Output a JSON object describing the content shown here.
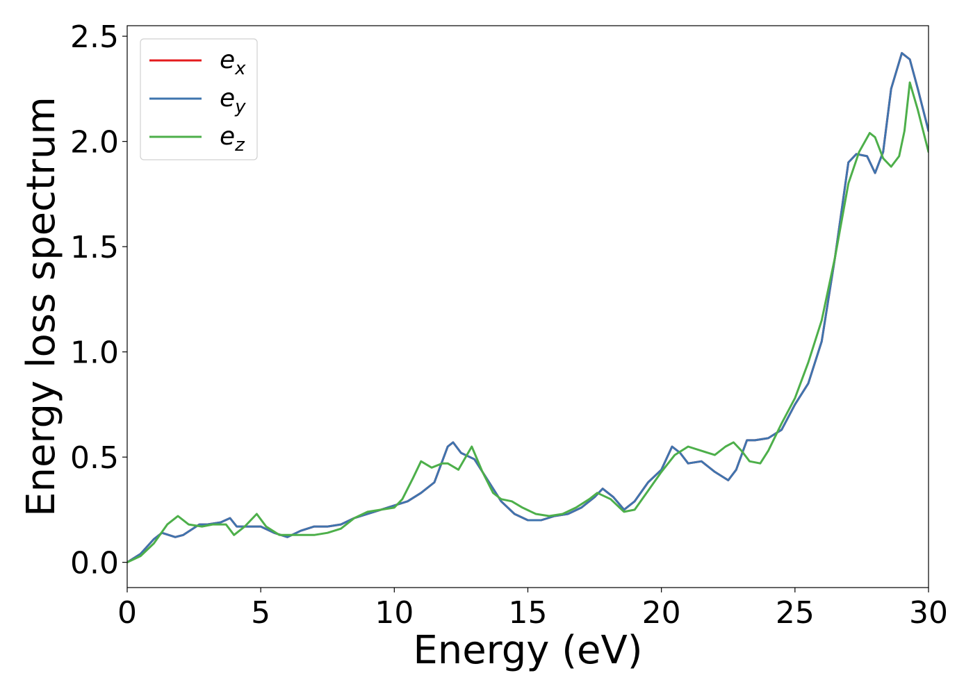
{
  "chart_data": {
    "type": "line",
    "title": "",
    "xlabel": "Energy (eV)",
    "ylabel": "Energy loss spectrum",
    "xlim": [
      0,
      30
    ],
    "ylim": [
      -0.12,
      2.55
    ],
    "xticks": [
      "0",
      "5",
      "10",
      "15",
      "20",
      "25",
      "30"
    ],
    "yticks": [
      "0.0",
      "0.5",
      "1.0",
      "1.5",
      "2.0",
      "2.5"
    ],
    "grid": false,
    "legend_position": "upper-left",
    "series": [
      {
        "name": "e_x",
        "label_base": "e",
        "label_sub": "x",
        "color": "#e41a1c",
        "x": [
          0,
          0.5,
          1.0,
          1.3,
          1.8,
          2.1,
          2.7,
          3.0,
          3.5,
          3.85,
          4.1,
          4.5,
          5.0,
          5.5,
          6.0,
          6.5,
          7.0,
          7.5,
          8.0,
          8.5,
          9.0,
          9.5,
          10.0,
          10.5,
          11.0,
          11.5,
          12.0,
          12.2,
          12.5,
          13.0,
          13.5,
          14.0,
          14.5,
          15.0,
          15.5,
          16.0,
          16.5,
          17.0,
          17.5,
          17.8,
          18.2,
          18.6,
          19.0,
          19.5,
          20.0,
          20.4,
          20.7,
          21.0,
          21.5,
          22.0,
          22.5,
          22.8,
          23.2,
          23.5,
          24.0,
          24.5,
          25.0,
          25.5,
          26.0,
          26.5,
          27.0,
          27.3,
          27.7,
          28.0,
          28.3,
          28.6,
          29.0,
          29.3,
          29.6,
          30.0
        ],
        "y": [
          0.0,
          0.04,
          0.11,
          0.14,
          0.12,
          0.13,
          0.18,
          0.18,
          0.19,
          0.21,
          0.17,
          0.17,
          0.17,
          0.14,
          0.12,
          0.15,
          0.17,
          0.17,
          0.18,
          0.21,
          0.23,
          0.25,
          0.27,
          0.29,
          0.33,
          0.38,
          0.55,
          0.57,
          0.52,
          0.49,
          0.39,
          0.29,
          0.23,
          0.2,
          0.2,
          0.22,
          0.23,
          0.26,
          0.31,
          0.35,
          0.31,
          0.25,
          0.29,
          0.38,
          0.44,
          0.55,
          0.52,
          0.47,
          0.48,
          0.43,
          0.39,
          0.44,
          0.58,
          0.58,
          0.59,
          0.63,
          0.75,
          0.85,
          1.05,
          1.45,
          1.9,
          1.94,
          1.93,
          1.85,
          1.95,
          2.25,
          2.42,
          2.39,
          2.25,
          2.05
        ]
      },
      {
        "name": "e_y",
        "label_base": "e",
        "label_sub": "y",
        "color": "#3f74ae",
        "x": [
          0,
          0.5,
          1.0,
          1.3,
          1.8,
          2.1,
          2.7,
          3.0,
          3.5,
          3.85,
          4.1,
          4.5,
          5.0,
          5.5,
          6.0,
          6.5,
          7.0,
          7.5,
          8.0,
          8.5,
          9.0,
          9.5,
          10.0,
          10.5,
          11.0,
          11.5,
          12.0,
          12.2,
          12.5,
          13.0,
          13.5,
          14.0,
          14.5,
          15.0,
          15.5,
          16.0,
          16.5,
          17.0,
          17.5,
          17.8,
          18.2,
          18.6,
          19.0,
          19.5,
          20.0,
          20.4,
          20.7,
          21.0,
          21.5,
          22.0,
          22.5,
          22.8,
          23.2,
          23.5,
          24.0,
          24.5,
          25.0,
          25.5,
          26.0,
          26.5,
          27.0,
          27.3,
          27.7,
          28.0,
          28.3,
          28.6,
          29.0,
          29.3,
          29.6,
          30.0
        ],
        "y": [
          0.0,
          0.04,
          0.11,
          0.14,
          0.12,
          0.13,
          0.18,
          0.18,
          0.19,
          0.21,
          0.17,
          0.17,
          0.17,
          0.14,
          0.12,
          0.15,
          0.17,
          0.17,
          0.18,
          0.21,
          0.23,
          0.25,
          0.27,
          0.29,
          0.33,
          0.38,
          0.55,
          0.57,
          0.52,
          0.49,
          0.39,
          0.29,
          0.23,
          0.2,
          0.2,
          0.22,
          0.23,
          0.26,
          0.31,
          0.35,
          0.31,
          0.25,
          0.29,
          0.38,
          0.44,
          0.55,
          0.52,
          0.47,
          0.48,
          0.43,
          0.39,
          0.44,
          0.58,
          0.58,
          0.59,
          0.63,
          0.75,
          0.85,
          1.05,
          1.45,
          1.9,
          1.94,
          1.93,
          1.85,
          1.95,
          2.25,
          2.42,
          2.39,
          2.25,
          2.05
        ]
      },
      {
        "name": "e_z",
        "label_base": "e",
        "label_sub": "z",
        "color": "#4daf4a",
        "x": [
          0,
          0.5,
          1.0,
          1.5,
          1.9,
          2.3,
          2.8,
          3.2,
          3.7,
          4.0,
          4.4,
          4.85,
          5.2,
          5.7,
          6.2,
          7.0,
          7.5,
          8.0,
          8.5,
          9.0,
          9.5,
          10.0,
          10.3,
          10.7,
          11.0,
          11.4,
          11.8,
          12.0,
          12.4,
          12.9,
          13.3,
          13.7,
          14.0,
          14.4,
          14.8,
          15.3,
          15.8,
          16.3,
          16.8,
          17.3,
          17.6,
          18.1,
          18.6,
          19.0,
          19.5,
          20.0,
          20.5,
          21.0,
          21.5,
          22.0,
          22.4,
          22.7,
          23.0,
          23.3,
          23.7,
          24.0,
          24.5,
          25.0,
          25.5,
          26.0,
          26.5,
          27.0,
          27.4,
          27.8,
          28.0,
          28.3,
          28.6,
          28.9,
          29.1,
          29.3,
          29.6,
          30.0
        ],
        "y": [
          0.0,
          0.03,
          0.09,
          0.18,
          0.22,
          0.18,
          0.17,
          0.18,
          0.18,
          0.13,
          0.17,
          0.23,
          0.17,
          0.13,
          0.13,
          0.13,
          0.14,
          0.16,
          0.21,
          0.24,
          0.25,
          0.26,
          0.3,
          0.4,
          0.48,
          0.45,
          0.47,
          0.47,
          0.44,
          0.55,
          0.43,
          0.33,
          0.3,
          0.29,
          0.26,
          0.23,
          0.22,
          0.23,
          0.26,
          0.3,
          0.33,
          0.3,
          0.24,
          0.25,
          0.34,
          0.43,
          0.51,
          0.55,
          0.53,
          0.51,
          0.55,
          0.57,
          0.53,
          0.48,
          0.47,
          0.53,
          0.66,
          0.78,
          0.95,
          1.15,
          1.45,
          1.8,
          1.95,
          2.04,
          2.02,
          1.92,
          1.88,
          1.93,
          2.05,
          2.28,
          2.15,
          1.95
        ]
      }
    ]
  }
}
